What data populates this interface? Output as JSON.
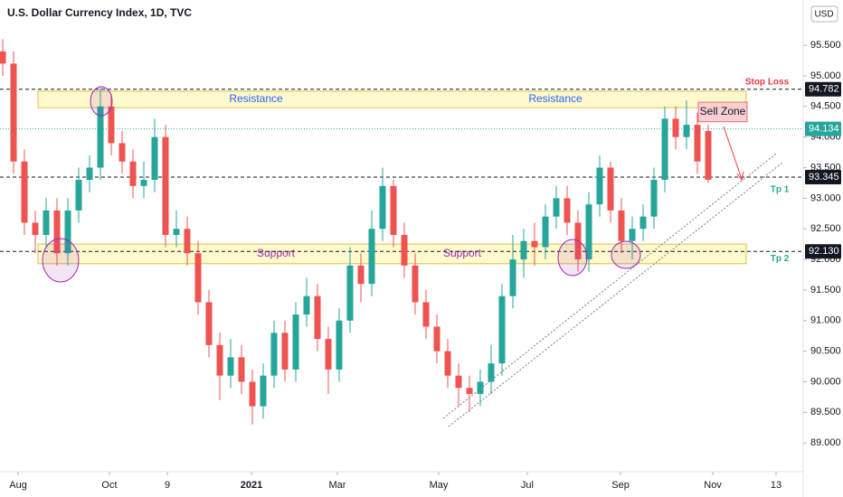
{
  "header": {
    "title": "U.S. Dollar Currency Index, 1D, TVC",
    "currency": "USD"
  },
  "chart_data": {
    "type": "candlestick",
    "series": [
      {
        "up_color": "#26a69a",
        "down_color": "#ef5350",
        "open": [
          95.4,
          95.2,
          93.6,
          92.6,
          92.4,
          92.8,
          92.1,
          92.8,
          93.3,
          93.5,
          94.5,
          93.9,
          93.6,
          93.2,
          93.3,
          94.0,
          92.4,
          92.5,
          92.1,
          91.3,
          90.6,
          90.1,
          90.4,
          90.0,
          89.6,
          90.1,
          90.8,
          90.2,
          91.1,
          91.4,
          90.7,
          90.2,
          91.0,
          91.9,
          91.6,
          92.5,
          93.2,
          92.4,
          91.9,
          91.3,
          90.9,
          90.5,
          90.1,
          89.9,
          89.8,
          90.0,
          90.3,
          91.4,
          92.0,
          92.3,
          92.2,
          92.7,
          93.0,
          92.6,
          92.0,
          92.9,
          93.5,
          92.8,
          92.3,
          92.5,
          92.7,
          93.3,
          94.3,
          94.0,
          94.2,
          94.1
        ],
        "high": [
          95.6,
          95.4,
          93.8,
          92.8,
          93.0,
          93.0,
          93.0,
          93.5,
          93.7,
          94.8,
          94.7,
          94.1,
          93.8,
          93.6,
          94.3,
          94.2,
          92.8,
          92.7,
          92.3,
          91.5,
          90.8,
          90.7,
          90.6,
          90.2,
          90.3,
          91.0,
          91.0,
          91.3,
          91.7,
          91.6,
          90.9,
          91.2,
          92.2,
          92.1,
          92.8,
          93.5,
          93.3,
          92.6,
          92.1,
          91.5,
          91.1,
          90.7,
          90.3,
          90.1,
          90.2,
          90.6,
          91.6,
          92.4,
          92.5,
          92.6,
          92.9,
          93.2,
          93.2,
          92.8,
          93.1,
          93.7,
          93.6,
          93.0,
          92.7,
          92.9,
          93.5,
          94.5,
          94.5,
          94.6,
          94.4,
          94.2
        ],
        "low": [
          95.0,
          93.4,
          92.4,
          92.1,
          92.2,
          91.9,
          91.9,
          92.6,
          93.1,
          93.3,
          93.7,
          93.4,
          93.0,
          93.0,
          93.1,
          92.2,
          92.2,
          91.9,
          91.1,
          90.4,
          89.7,
          89.9,
          89.8,
          89.3,
          89.4,
          89.9,
          90.0,
          90.0,
          90.9,
          90.5,
          89.8,
          90.0,
          90.8,
          91.3,
          91.4,
          92.3,
          92.2,
          91.7,
          91.1,
          90.7,
          90.3,
          89.9,
          89.6,
          89.5,
          89.6,
          89.8,
          90.1,
          91.2,
          91.7,
          91.9,
          92.0,
          92.5,
          92.4,
          91.8,
          91.8,
          92.7,
          92.6,
          92.1,
          92.0,
          92.3,
          92.5,
          93.1,
          93.8,
          93.8,
          93.4,
          93.25
        ],
        "close": [
          95.2,
          93.6,
          92.6,
          92.4,
          92.8,
          92.1,
          92.8,
          93.3,
          93.5,
          94.5,
          93.9,
          93.6,
          93.2,
          93.3,
          94.0,
          92.4,
          92.5,
          92.1,
          91.3,
          90.6,
          90.1,
          90.4,
          90.0,
          89.6,
          90.1,
          90.8,
          90.2,
          91.1,
          91.4,
          90.7,
          90.2,
          91.0,
          91.9,
          91.6,
          92.5,
          93.2,
          92.4,
          91.9,
          91.3,
          90.9,
          90.5,
          90.1,
          89.9,
          89.8,
          90.0,
          90.3,
          91.4,
          92.0,
          92.3,
          92.2,
          92.7,
          93.0,
          92.6,
          92.0,
          92.9,
          93.5,
          92.8,
          92.3,
          92.5,
          92.7,
          93.3,
          94.3,
          94.0,
          94.2,
          93.6,
          93.3
        ]
      }
    ],
    "xlim": [
      -0.25,
      73.75
    ],
    "xticks": [
      {
        "value": 1.42,
        "label": "Aug"
      },
      {
        "value": 9.83,
        "label": "Oct"
      },
      {
        "value": 15.17,
        "label": "9"
      },
      {
        "value": 22.92,
        "label": "2021"
      },
      {
        "value": 30.83,
        "label": "Mar"
      },
      {
        "value": 40.17,
        "label": "May"
      },
      {
        "value": 48.33,
        "label": "Jul"
      },
      {
        "value": 56.92,
        "label": "Sep"
      },
      {
        "value": 65.42,
        "label": "Nov"
      },
      {
        "value": 71.25,
        "label": "13"
      }
    ],
    "ylim": [
      88.53,
      96.24
    ],
    "yticks": [
      {
        "value": 95.5,
        "label": "95.500"
      },
      {
        "value": 95,
        "label": "95.000"
      },
      {
        "value": 94.5,
        "label": "94.500"
      },
      {
        "value": 94,
        "label": "94.000"
      },
      {
        "value": 93.5,
        "label": "93.500"
      },
      {
        "value": 93,
        "label": "93.000"
      },
      {
        "value": 92.5,
        "label": "92.500"
      },
      {
        "value": 92,
        "label": "92.000"
      },
      {
        "value": 91.5,
        "label": "91.500"
      },
      {
        "value": 91,
        "label": "91.000"
      },
      {
        "value": 90.5,
        "label": "90.500"
      },
      {
        "value": 90,
        "label": "90.000"
      },
      {
        "value": 89.5,
        "label": "89.500"
      },
      {
        "value": 89,
        "label": "89.000"
      }
    ],
    "levels": [
      {
        "value": 94.782,
        "label": "94.782",
        "text": "Stop Loss",
        "style": "dashed",
        "color": "#131722",
        "text_color": "#f23645"
      },
      {
        "value": 94.134,
        "label": "94.134",
        "style": "dotted",
        "color": "#26a69a"
      },
      {
        "value": 93.345,
        "label": "93.345",
        "text": "Tp 1",
        "style": "dashed",
        "color": "#131722",
        "text_color": "#22ab94"
      },
      {
        "value": 92.13,
        "label": "92.130",
        "text": "Tp 2",
        "style": "dashed",
        "color": "#131722",
        "text_color": "#22ab94"
      }
    ],
    "zones": [
      {
        "labels": [
          "Resistance",
          "Resistance"
        ],
        "low": 94.48,
        "high": 94.75,
        "fill": "#fff9c4",
        "stroke": "#d8c24a",
        "text_color": "#2962ff"
      },
      {
        "labels": [
          "Support",
          "Support"
        ],
        "low": 91.93,
        "high": 92.25,
        "fill": "#fff9c4",
        "stroke": "#d8c24a",
        "text_color": "#9c27b0"
      },
      {
        "labels": [
          "Sell Zone"
        ],
        "low": 94.25,
        "high": 94.57,
        "fill": "#f8c7cf",
        "stroke": "#e57373",
        "text_color": "#131722"
      }
    ],
    "grid": false
  }
}
